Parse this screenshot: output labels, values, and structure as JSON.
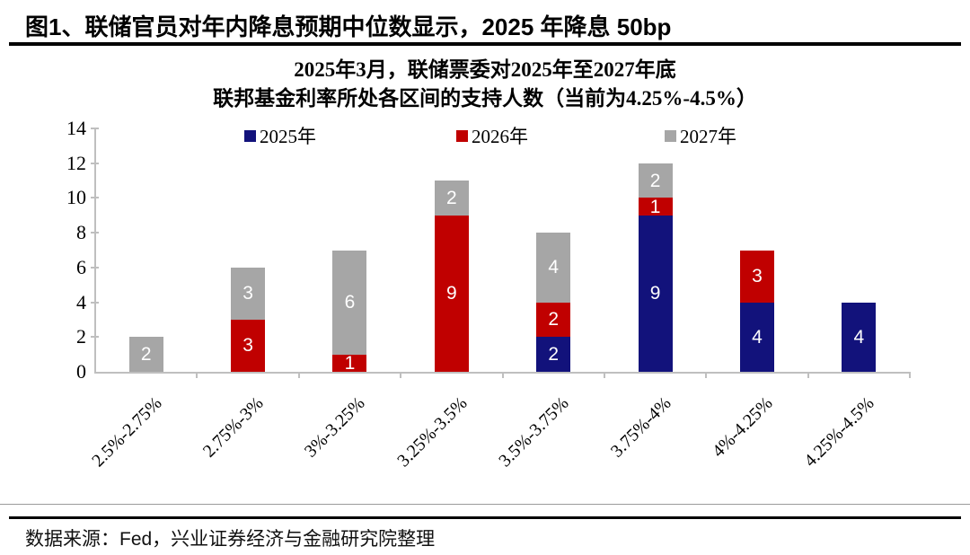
{
  "header": {
    "title": "图1、联储官员对年内降息预期中位数显示，2025 年降息 50bp"
  },
  "chart_data": {
    "type": "bar",
    "stacked": true,
    "title_line1": "2025年3月，联储票委对2025年至2027年底",
    "title_line2": "联邦基金利率所处各区间的支持人数（当前为4.25%-4.5%）",
    "categories": [
      "2.5%-2.75%",
      "2.75%-3%",
      "3%-3.25%",
      "3.25%-3.5%",
      "3.5%-3.75%",
      "3.75%-4%",
      "4%-4.25%",
      "4.25%-4.5%"
    ],
    "series": [
      {
        "name": "2025年",
        "color": "#12127b",
        "values": [
          0,
          0,
          0,
          0,
          2,
          9,
          4,
          4
        ]
      },
      {
        "name": "2026年",
        "color": "#c00000",
        "values": [
          0,
          3,
          1,
          9,
          2,
          1,
          3,
          0
        ]
      },
      {
        "name": "2027年",
        "color": "#a6a6a6",
        "values": [
          2,
          3,
          6,
          2,
          4,
          2,
          0,
          0
        ]
      }
    ],
    "totals": [
      2,
      6,
      7,
      11,
      8,
      12,
      7,
      4
    ],
    "y_ticks": [
      0,
      2,
      4,
      6,
      8,
      10,
      12,
      14
    ],
    "ylim": [
      0,
      14
    ],
    "xlabel": "",
    "ylabel": "",
    "grid": false,
    "legend_position": "top-inside",
    "axis_color": "#bfbfbf",
    "data_label_color": "#ffffff"
  },
  "footer": {
    "source_text": "数据来源：Fed，兴业证券经济与金融研究院整理"
  }
}
